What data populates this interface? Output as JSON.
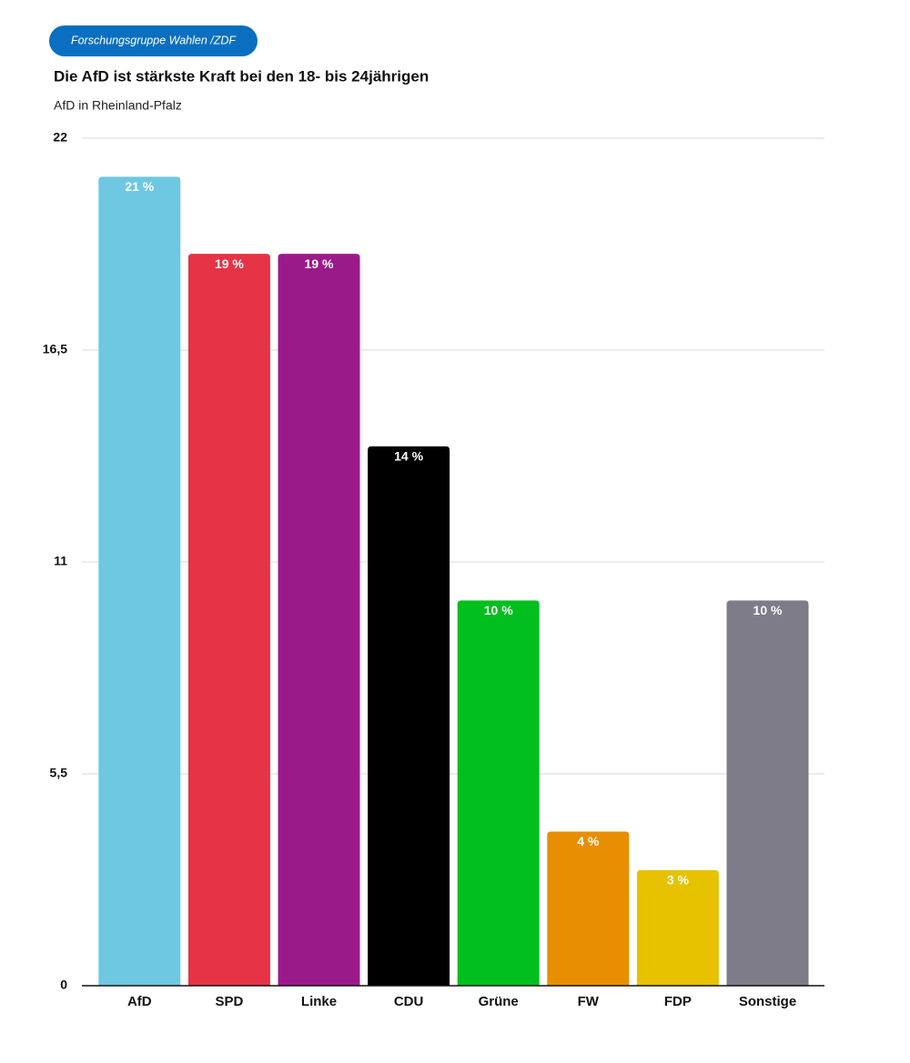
{
  "chart_data": {
    "type": "bar",
    "source": "Forschungsgruppe Wahlen /ZDF",
    "title": "Die AfD ist stärkste Kraft bei den 18- bis 24jährigen",
    "subtitle": "AfD in Rheinland-Pfalz",
    "categories": [
      "AfD",
      "SPD",
      "Linke",
      "CDU",
      "Grüne",
      "FW",
      "FDP",
      "Sonstige"
    ],
    "values": [
      21,
      19,
      19,
      14,
      10,
      4,
      3,
      10
    ],
    "value_labels": [
      "21 %",
      "19 %",
      "19 %",
      "14 %",
      "10 %",
      "4 %",
      "3 %",
      "10 %"
    ],
    "colors": [
      "#6ec8e2",
      "#e63346",
      "#9b1a8a",
      "#000000",
      "#00bf1e",
      "#e88e00",
      "#e6c200",
      "#7e7c89"
    ],
    "ylim": [
      0,
      22
    ],
    "yticks": [
      0,
      {
        "value": 5.5,
        "label": "5,5"
      },
      11,
      {
        "value": 16.5,
        "label": "16,5"
      },
      22
    ],
    "grid": true
  }
}
